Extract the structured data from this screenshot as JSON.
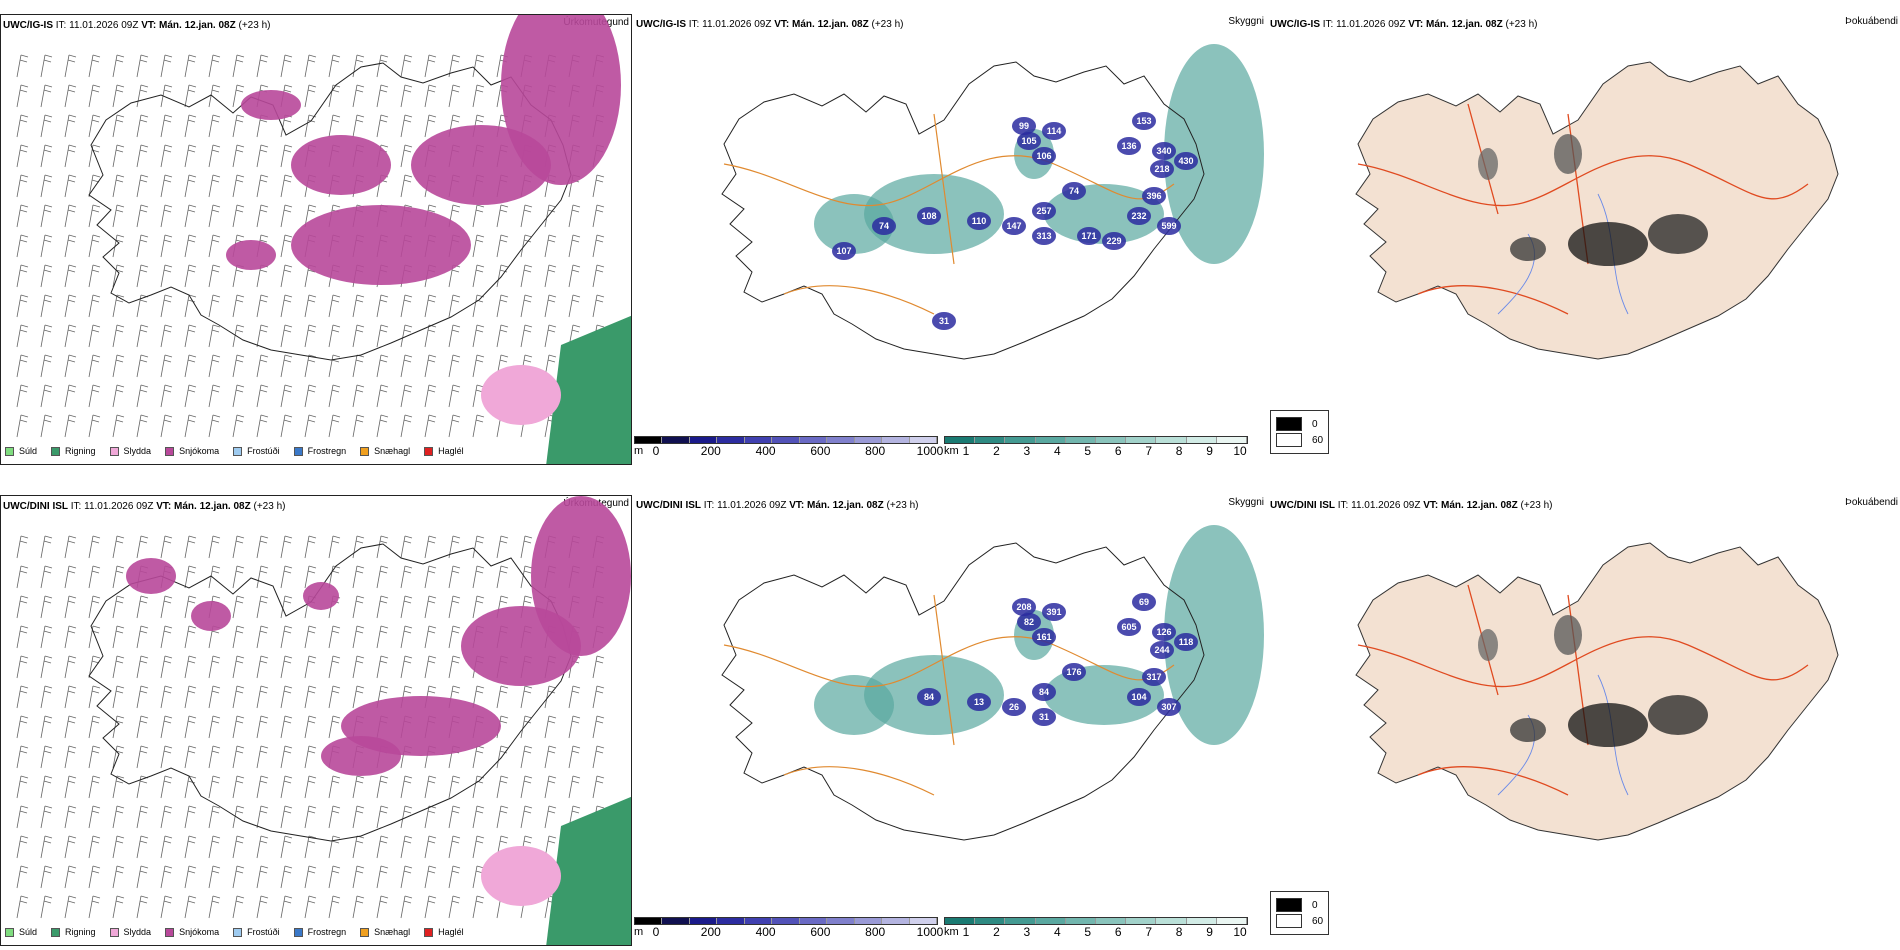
{
  "rows": [
    {
      "source": "UWC/IG-IS",
      "it_label": "IT:",
      "it_value": "11.01.2026 09Z",
      "vt_label": "VT:",
      "vt_value": "Mán. 12.jan. 08Z",
      "lead": "(+23 h)",
      "cloud_labels": [
        "153",
        "136",
        "340",
        "430",
        "218",
        "396",
        "114",
        "106",
        "105",
        "99",
        "74",
        "257",
        "232",
        "599",
        "108",
        "110",
        "147",
        "313",
        "171",
        "229",
        "74",
        "107",
        "31"
      ]
    },
    {
      "source": "UWC/DINI ISL",
      "it_label": "IT:",
      "it_value": "11.01.2026 09Z",
      "vt_label": "VT:",
      "vt_value": "Mán. 12.jan. 08Z",
      "lead": "(+23 h)",
      "cloud_labels": [
        "69",
        "605",
        "126",
        "118",
        "244",
        "317",
        "391",
        "161",
        "82",
        "208",
        "176",
        "84",
        "104",
        "307",
        "84",
        "13",
        "26",
        "31"
      ]
    }
  ],
  "panel_titles": {
    "precip_type": "Úrkomutegund",
    "cloud": "Skyggni",
    "fog": "Þokuábendi"
  },
  "precip_legend": [
    {
      "label": "Súld",
      "color": "#7fdc7f"
    },
    {
      "label": "Rigning",
      "color": "#3a9a6a"
    },
    {
      "label": "Slydda",
      "color": "#f0a8d8"
    },
    {
      "label": "Snjókoma",
      "color": "#b8489a"
    },
    {
      "label": "Frostúði",
      "color": "#9ecbf0"
    },
    {
      "label": "Frostregn",
      "color": "#3a78c8"
    },
    {
      "label": "Snæhagl",
      "color": "#f0a020"
    },
    {
      "label": "Haglél",
      "color": "#e02020"
    }
  ],
  "cloud_base_scale": {
    "unit": "m",
    "ticks": [
      "0",
      "200",
      "400",
      "600",
      "800",
      "1000"
    ],
    "colors": [
      "#000000",
      "#101050",
      "#1a1a8a",
      "#2c2ca0",
      "#4040b0",
      "#5252b8",
      "#6a6ac4",
      "#8080cc",
      "#9a9ad6",
      "#b4b4e0",
      "#d0d0ec"
    ]
  },
  "visibility_scale": {
    "unit": "km",
    "ticks": [
      "1",
      "2",
      "3",
      "4",
      "5",
      "6",
      "7",
      "8",
      "9",
      "10"
    ],
    "colors": [
      "#1a7a72",
      "#2e8a82",
      "#449a92",
      "#5aa8a0",
      "#72b6ae",
      "#8ac4bc",
      "#a2d2ca",
      "#bae0d8",
      "#d2ece6",
      "#eaf6f2"
    ]
  },
  "fog_legend": [
    {
      "label": "0",
      "color": "#000000"
    },
    {
      "label": "60",
      "color": "#ffffff"
    }
  ]
}
